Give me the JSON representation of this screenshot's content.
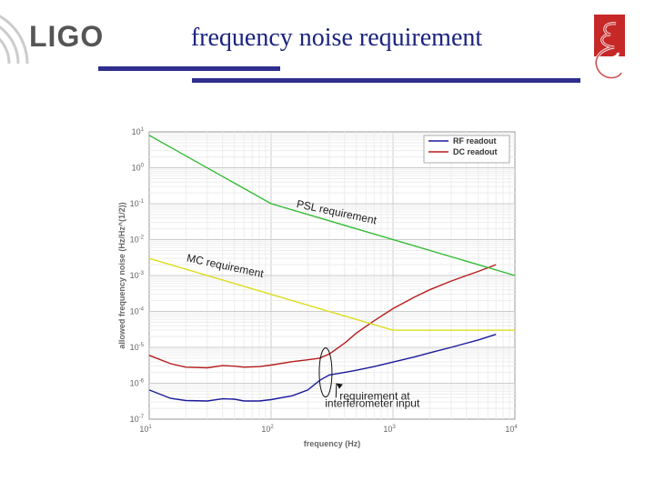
{
  "header": {
    "logo_text": "LIGO",
    "title": "frequency noise requirement",
    "emblem_icon": "caltech-style-emblem",
    "colors": {
      "title": "#1a237e",
      "rule": "#2e2e8f",
      "emblem": "#c62828"
    }
  },
  "chart_data": {
    "type": "line",
    "title": "",
    "xlabel": "frequency (Hz)",
    "ylabel": "allowed frequency noise (Hz/Hz^(1/2))",
    "xscale": "log",
    "yscale": "log",
    "xlim": [
      10,
      10000
    ],
    "ylim": [
      1e-07,
      10
    ],
    "x_ticks": [
      {
        "v": 10,
        "base": "10",
        "exp": "1"
      },
      {
        "v": 100,
        "base": "10",
        "exp": "2"
      },
      {
        "v": 1000,
        "base": "10",
        "exp": "3"
      },
      {
        "v": 10000,
        "base": "10",
        "exp": "4"
      }
    ],
    "y_ticks": [
      {
        "v": 10,
        "base": "10",
        "exp": "1"
      },
      {
        "v": 1,
        "base": "10",
        "exp": "0"
      },
      {
        "v": 0.1,
        "base": "10",
        "exp": "-1"
      },
      {
        "v": 0.01,
        "base": "10",
        "exp": "-2"
      },
      {
        "v": 0.001,
        "base": "10",
        "exp": "-3"
      },
      {
        "v": 0.0001,
        "base": "10",
        "exp": "-4"
      },
      {
        "v": 1e-05,
        "base": "10",
        "exp": "-5"
      },
      {
        "v": 1e-06,
        "base": "10",
        "exp": "-6"
      },
      {
        "v": 1e-07,
        "base": "10",
        "exp": "-7"
      }
    ],
    "grid": true,
    "legend_position": "top-right",
    "series": [
      {
        "name": "RF readout",
        "color": "#1a1a9c",
        "in_legend": true,
        "x": [
          10,
          15,
          20,
          30,
          40,
          50,
          60,
          80,
          100,
          150,
          200,
          250,
          300,
          400,
          500,
          700,
          1000,
          1500,
          2000,
          3000,
          5000,
          7000
        ],
        "y": [
          6.5e-07,
          3.8e-07,
          3.3e-07,
          3.2e-07,
          3.7e-07,
          3.6e-07,
          3.2e-07,
          3.2e-07,
          3.5e-07,
          4.5e-07,
          6.5e-07,
          1.2e-06,
          1.7e-06,
          2e-06,
          2.3e-06,
          2.9e-06,
          3.9e-06,
          5.4e-06,
          7e-06,
          1e-05,
          1.6e-05,
          2.3e-05
        ]
      },
      {
        "name": "DC readout",
        "color": "#b71c1c",
        "in_legend": true,
        "x": [
          10,
          15,
          20,
          30,
          40,
          50,
          60,
          80,
          100,
          150,
          200,
          250,
          300,
          400,
          500,
          700,
          1000,
          1500,
          2000,
          3000,
          5000,
          7000
        ],
        "y": [
          6e-06,
          3.5e-06,
          2.8e-06,
          2.7e-06,
          3.1e-06,
          3e-06,
          2.8e-06,
          2.9e-06,
          3.2e-06,
          4e-06,
          4.5e-06,
          5e-06,
          6.5e-06,
          1.3e-05,
          2.5e-05,
          5.5e-05,
          0.00012,
          0.00025,
          0.0004,
          0.0007,
          0.0013,
          0.002
        ]
      },
      {
        "name": "PSL requirement",
        "color": "#33bb33",
        "in_legend": false,
        "x": [
          10,
          100,
          10000
        ],
        "y": [
          8,
          0.1,
          0.001
        ]
      },
      {
        "name": "MC requirement",
        "color": "#dddd22",
        "in_legend": false,
        "x": [
          10,
          1000,
          10000
        ],
        "y": [
          0.003,
          3e-05,
          3e-05
        ]
      }
    ],
    "annotations": [
      {
        "text": "PSL requirement",
        "at_x": 160,
        "at_y": 0.08,
        "rotate": 12
      },
      {
        "text": "MC requirement",
        "at_x": 12,
        "at_y": 0.0025,
        "rotate": 12
      },
      {
        "text": "requirement at",
        "at_x": 750,
        "at_y": 5e-07,
        "rotate": 0
      },
      {
        "text": "interferometer input",
        "at_x": 750,
        "at_y": 2.5e-07,
        "rotate": 0
      }
    ]
  }
}
